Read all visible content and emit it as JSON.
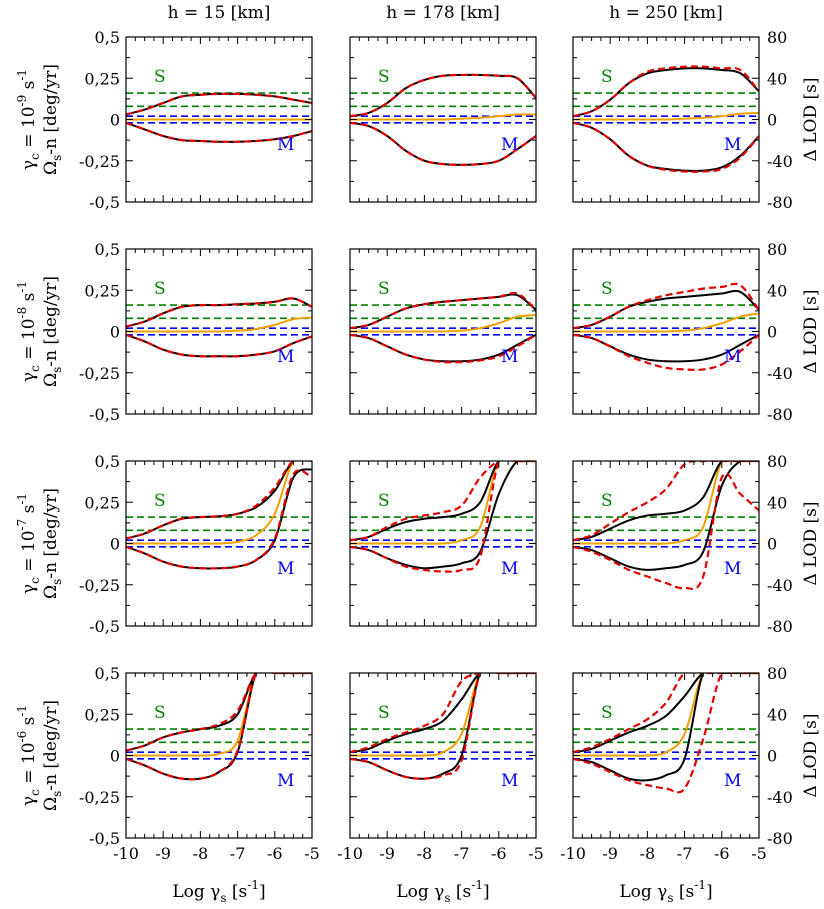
{
  "colors": {
    "black": "#000000",
    "red": "#e00000",
    "orange": "#f0a000",
    "green": "#008000",
    "blue": "#0000ee"
  },
  "column_titles": [
    "h = 15 [km]",
    "h = 178 [km]",
    "h = 250 [km]"
  ],
  "row_labels": [
    {
      "gamma": "γ",
      "gsub": "c",
      "eq": " = 10",
      "exp": "-9",
      "unit": "s",
      "uexp": "-1"
    },
    {
      "gamma": "γ",
      "gsub": "c",
      "eq": " = 10",
      "exp": "-8",
      "unit": "s",
      "uexp": "-1"
    },
    {
      "gamma": "γ",
      "gsub": "c",
      "eq": " = 10",
      "exp": "-7",
      "unit": "s",
      "uexp": "-1"
    },
    {
      "gamma": "γ",
      "gsub": "c",
      "eq": " = 10",
      "exp": "-6",
      "unit": "s",
      "uexp": "-1"
    }
  ],
  "left_ylabel": {
    "omega": "Ω",
    "osub": "s",
    "rest": "-n  [deg/yr]"
  },
  "right_ylabel": "Δ LOD [s]",
  "xlabel": {
    "main": "Log γ",
    "sub": "s",
    "unit": " [s",
    "uexp": "-1",
    "close": "]"
  },
  "left_ticks": [
    "0,5",
    "0,25",
    "0",
    "-0,25",
    "-0,5"
  ],
  "right_ticks": [
    "80",
    "40",
    "0",
    "-40",
    "-80"
  ],
  "x_ticks": [
    "-10",
    "-9",
    "-8",
    "-7",
    "-6",
    "-5"
  ],
  "annotations": {
    "S": "S",
    "M": "M"
  },
  "chart_data": {
    "type": "line",
    "layout": "4x3 grid of panels",
    "x": [
      -10,
      -9.5,
      -9,
      -8.5,
      -8,
      -7.5,
      -7,
      -6.5,
      -6,
      -5.5,
      -5
    ],
    "xlim": [
      -10,
      -5
    ],
    "ylim_left": [
      -0.5,
      0.5
    ],
    "ylim_right": [
      -80,
      80
    ],
    "reference_lines": {
      "S_green_dashed": [
        0.16,
        0.08
      ],
      "M_blue_dashed": [
        0.02,
        -0.02
      ]
    },
    "panels": [
      {
        "row": 0,
        "col": 0,
        "black_upper": [
          0.03,
          0.06,
          0.1,
          0.14,
          0.15,
          0.155,
          0.155,
          0.15,
          0.14,
          0.12,
          0.1
        ],
        "red_upper": [
          0.03,
          0.06,
          0.1,
          0.14,
          0.15,
          0.155,
          0.155,
          0.15,
          0.14,
          0.12,
          0.1
        ],
        "black_lower": [
          -0.02,
          -0.06,
          -0.1,
          -0.125,
          -0.13,
          -0.135,
          -0.135,
          -0.13,
          -0.12,
          -0.1,
          -0.07
        ],
        "red_lower": [
          -0.02,
          -0.06,
          -0.1,
          -0.125,
          -0.13,
          -0.135,
          -0.135,
          -0.13,
          -0.12,
          -0.1,
          -0.07
        ],
        "orange": [
          0,
          0,
          0,
          0,
          0,
          0,
          0,
          0,
          0,
          0,
          0
        ]
      },
      {
        "row": 0,
        "col": 1,
        "black_upper": [
          0.02,
          0.04,
          0.1,
          0.19,
          0.24,
          0.265,
          0.27,
          0.27,
          0.265,
          0.25,
          0.13
        ],
        "red_upper": [
          0.02,
          0.04,
          0.1,
          0.19,
          0.24,
          0.265,
          0.27,
          0.27,
          0.265,
          0.25,
          0.13
        ],
        "black_lower": [
          -0.02,
          -0.04,
          -0.1,
          -0.19,
          -0.25,
          -0.27,
          -0.275,
          -0.27,
          -0.25,
          -0.18,
          -0.1
        ],
        "red_lower": [
          -0.02,
          -0.04,
          -0.1,
          -0.19,
          -0.25,
          -0.27,
          -0.275,
          -0.27,
          -0.25,
          -0.18,
          -0.1
        ],
        "orange": [
          0,
          0,
          0,
          0,
          0,
          0,
          0.005,
          0.01,
          0.02,
          0.03,
          0.03
        ]
      },
      {
        "row": 0,
        "col": 2,
        "black_upper": [
          0.02,
          0.05,
          0.12,
          0.22,
          0.28,
          0.3,
          0.31,
          0.31,
          0.3,
          0.28,
          0.17
        ],
        "red_upper": [
          0.02,
          0.05,
          0.12,
          0.22,
          0.29,
          0.31,
          0.32,
          0.32,
          0.31,
          0.3,
          0.17
        ],
        "black_lower": [
          -0.02,
          -0.05,
          -0.12,
          -0.22,
          -0.28,
          -0.3,
          -0.31,
          -0.31,
          -0.29,
          -0.22,
          -0.1
        ],
        "red_lower": [
          -0.02,
          -0.05,
          -0.12,
          -0.22,
          -0.28,
          -0.305,
          -0.315,
          -0.315,
          -0.3,
          -0.23,
          -0.1
        ],
        "orange": [
          0,
          0,
          0,
          0,
          0,
          0,
          0.005,
          0.01,
          0.02,
          0.035,
          0.04
        ]
      },
      {
        "row": 1,
        "col": 0,
        "black_upper": [
          0.03,
          0.06,
          0.11,
          0.15,
          0.16,
          0.16,
          0.165,
          0.17,
          0.18,
          0.2,
          0.15
        ],
        "red_upper": [
          0.03,
          0.06,
          0.11,
          0.15,
          0.16,
          0.16,
          0.165,
          0.17,
          0.18,
          0.2,
          0.15
        ],
        "black_lower": [
          -0.02,
          -0.06,
          -0.11,
          -0.14,
          -0.15,
          -0.15,
          -0.15,
          -0.14,
          -0.12,
          -0.07,
          -0.03
        ],
        "red_lower": [
          -0.02,
          -0.06,
          -0.11,
          -0.14,
          -0.15,
          -0.15,
          -0.15,
          -0.14,
          -0.12,
          -0.07,
          -0.03
        ],
        "orange": [
          0,
          0,
          0,
          0,
          0,
          0,
          0.005,
          0.015,
          0.04,
          0.075,
          0.085
        ]
      },
      {
        "row": 1,
        "col": 1,
        "black_upper": [
          0.02,
          0.04,
          0.09,
          0.14,
          0.165,
          0.18,
          0.19,
          0.2,
          0.21,
          0.22,
          0.13
        ],
        "red_upper": [
          0.02,
          0.04,
          0.09,
          0.14,
          0.165,
          0.18,
          0.19,
          0.2,
          0.21,
          0.23,
          0.13
        ],
        "black_lower": [
          -0.02,
          -0.04,
          -0.09,
          -0.14,
          -0.17,
          -0.18,
          -0.18,
          -0.17,
          -0.14,
          -0.08,
          -0.02
        ],
        "red_lower": [
          -0.02,
          -0.04,
          -0.09,
          -0.14,
          -0.17,
          -0.185,
          -0.185,
          -0.175,
          -0.15,
          -0.09,
          -0.02
        ],
        "orange": [
          0,
          0,
          0,
          0,
          0,
          0,
          0.005,
          0.02,
          0.05,
          0.09,
          0.1
        ]
      },
      {
        "row": 1,
        "col": 2,
        "black_upper": [
          0.02,
          0.04,
          0.09,
          0.15,
          0.18,
          0.2,
          0.21,
          0.22,
          0.23,
          0.24,
          0.13
        ],
        "red_upper": [
          0.02,
          0.04,
          0.09,
          0.15,
          0.19,
          0.22,
          0.24,
          0.26,
          0.27,
          0.28,
          0.13
        ],
        "black_lower": [
          -0.02,
          -0.04,
          -0.09,
          -0.14,
          -0.17,
          -0.18,
          -0.18,
          -0.17,
          -0.14,
          -0.08,
          -0.02
        ],
        "red_lower": [
          -0.02,
          -0.04,
          -0.09,
          -0.15,
          -0.19,
          -0.22,
          -0.23,
          -0.23,
          -0.2,
          -0.12,
          -0.02
        ],
        "orange": [
          0,
          0,
          0,
          0,
          0,
          0,
          0.005,
          0.02,
          0.05,
          0.09,
          0.11
        ]
      },
      {
        "row": 2,
        "col": 0,
        "black_upper": [
          0.03,
          0.06,
          0.11,
          0.15,
          0.16,
          0.165,
          0.18,
          0.22,
          0.32,
          0.5,
          0.5
        ],
        "red_upper": [
          0.03,
          0.06,
          0.11,
          0.15,
          0.16,
          0.165,
          0.18,
          0.23,
          0.34,
          0.5,
          0.5
        ],
        "black_lower": [
          -0.02,
          -0.06,
          -0.11,
          -0.14,
          -0.15,
          -0.15,
          -0.14,
          -0.1,
          0.02,
          0.4,
          0.45
        ],
        "red_lower": [
          -0.02,
          -0.06,
          -0.11,
          -0.14,
          -0.15,
          -0.15,
          -0.14,
          -0.1,
          0.03,
          0.42,
          0.4
        ],
        "orange": [
          0,
          0,
          0,
          0,
          0,
          0,
          0.01,
          0.05,
          0.18,
          0.5,
          0.5
        ]
      },
      {
        "row": 2,
        "col": 1,
        "black_upper": [
          0.02,
          0.04,
          0.09,
          0.13,
          0.15,
          0.16,
          0.18,
          0.25,
          0.5,
          0.5,
          0.5
        ],
        "red_upper": [
          0.02,
          0.04,
          0.1,
          0.15,
          0.17,
          0.19,
          0.23,
          0.4,
          0.5,
          0.5,
          0.5
        ],
        "black_lower": [
          -0.02,
          -0.04,
          -0.09,
          -0.13,
          -0.15,
          -0.14,
          -0.12,
          -0.05,
          0.3,
          0.5,
          0.5
        ],
        "red_lower": [
          -0.02,
          -0.04,
          -0.09,
          -0.14,
          -0.16,
          -0.17,
          -0.16,
          -0.08,
          0.5,
          0.5,
          0.5
        ],
        "orange": [
          0,
          0,
          0,
          0,
          0,
          0,
          0.02,
          0.1,
          0.5,
          0.5,
          0.5
        ]
      },
      {
        "row": 2,
        "col": 2,
        "black_upper": [
          0.02,
          0.04,
          0.09,
          0.14,
          0.17,
          0.18,
          0.2,
          0.28,
          0.5,
          0.5,
          0.5
        ],
        "red_upper": [
          0.02,
          0.05,
          0.12,
          0.19,
          0.25,
          0.33,
          0.48,
          0.5,
          0.5,
          0.5,
          0.5
        ],
        "black_lower": [
          -0.02,
          -0.04,
          -0.09,
          -0.14,
          -0.16,
          -0.15,
          -0.13,
          -0.05,
          0.35,
          0.5,
          0.5
        ],
        "red_lower": [
          -0.02,
          -0.05,
          -0.1,
          -0.16,
          -0.2,
          -0.24,
          -0.27,
          -0.2,
          0.4,
          0.3,
          0.2
        ],
        "orange": [
          0,
          0,
          0,
          0,
          0,
          0,
          0.02,
          0.1,
          0.5,
          0.5,
          0.5
        ]
      },
      {
        "row": 3,
        "col": 0,
        "black_upper": [
          0.03,
          0.06,
          0.11,
          0.14,
          0.16,
          0.18,
          0.25,
          0.5,
          0.5,
          0.5,
          0.5
        ],
        "red_upper": [
          0.03,
          0.06,
          0.11,
          0.14,
          0.16,
          0.19,
          0.27,
          0.5,
          0.5,
          0.5,
          0.5
        ],
        "black_lower": [
          -0.02,
          -0.06,
          -0.11,
          -0.14,
          -0.14,
          -0.1,
          0.02,
          0.5,
          0.5,
          0.5,
          0.5
        ],
        "red_lower": [
          -0.02,
          -0.06,
          -0.11,
          -0.14,
          -0.14,
          -0.1,
          0.03,
          0.5,
          0.5,
          0.5,
          0.5
        ],
        "orange": [
          0,
          0,
          0,
          0,
          0,
          0.01,
          0.09,
          0.5,
          0.5,
          0.5,
          0.5
        ]
      },
      {
        "row": 3,
        "col": 1,
        "black_upper": [
          0.02,
          0.04,
          0.09,
          0.13,
          0.16,
          0.21,
          0.34,
          0.5,
          0.5,
          0.5,
          0.5
        ],
        "red_upper": [
          0.02,
          0.05,
          0.1,
          0.14,
          0.18,
          0.25,
          0.45,
          0.5,
          0.5,
          0.5,
          0.5
        ],
        "black_lower": [
          -0.02,
          -0.04,
          -0.09,
          -0.13,
          -0.14,
          -0.11,
          0.0,
          0.5,
          0.5,
          0.5,
          0.5
        ],
        "red_lower": [
          -0.02,
          -0.04,
          -0.09,
          -0.13,
          -0.14,
          -0.12,
          -0.03,
          0.5,
          0.5,
          0.5,
          0.5
        ],
        "orange": [
          0,
          0,
          0,
          0,
          0,
          0.02,
          0.13,
          0.5,
          0.5,
          0.5,
          0.5
        ]
      },
      {
        "row": 3,
        "col": 2,
        "black_upper": [
          0.02,
          0.04,
          0.09,
          0.14,
          0.18,
          0.24,
          0.36,
          0.5,
          0.5,
          0.5,
          0.5
        ],
        "red_upper": [
          0.02,
          0.05,
          0.1,
          0.16,
          0.22,
          0.32,
          0.5,
          0.5,
          0.5,
          0.5,
          0.5
        ],
        "black_lower": [
          -0.02,
          -0.04,
          -0.09,
          -0.14,
          -0.15,
          -0.12,
          -0.02,
          0.5,
          0.5,
          0.5,
          0.5
        ],
        "red_lower": [
          -0.02,
          -0.05,
          -0.1,
          -0.15,
          -0.18,
          -0.2,
          -0.2,
          0.1,
          0.5,
          0.5,
          0.5
        ],
        "orange": [
          0,
          0,
          0,
          0,
          0,
          0.02,
          0.13,
          0.5,
          0.5,
          0.5,
          0.5
        ]
      }
    ]
  }
}
